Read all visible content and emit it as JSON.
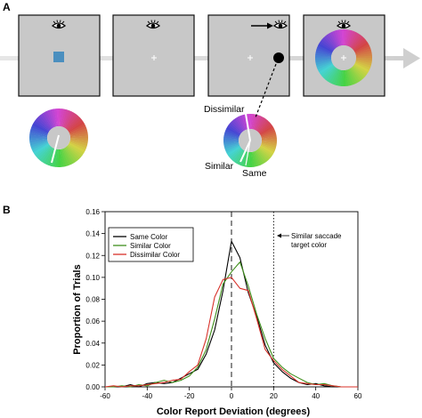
{
  "panel_a": {
    "letter": "A",
    "labels": {
      "dissimilar": "Dissimilar",
      "similar": "Similar",
      "same": "Same"
    }
  },
  "panel_b": {
    "letter": "B",
    "annotation": "Similar saccade\ntarget color"
  },
  "chart_data": {
    "type": "line",
    "title": "",
    "xlabel": "Color Report Deviation (degrees)",
    "ylabel": "Proportion of Trials",
    "xlim": [
      -60,
      60
    ],
    "ylim": [
      0,
      0.16
    ],
    "x_ticks": [
      -60,
      -40,
      -20,
      0,
      20,
      40,
      60
    ],
    "y_ticks": [
      0.0,
      0.02,
      0.04,
      0.06,
      0.08,
      0.1,
      0.12,
      0.14,
      0.16
    ],
    "y_tick_labels": [
      "0.00",
      "0.02",
      "0.04",
      "0.06",
      "0.08",
      "0.10",
      "0.12",
      "0.14",
      "0.16"
    ],
    "legend": "top-left",
    "grid": false,
    "reference_lines": [
      {
        "x": 0,
        "style": "dashed"
      },
      {
        "x": 20,
        "style": "dotted"
      }
    ],
    "series": [
      {
        "name": "Same Color",
        "color": "#000000",
        "x": [
          -60,
          -56,
          -52,
          -48,
          -44,
          -40,
          -36,
          -32,
          -28,
          -24,
          -20,
          -16,
          -12,
          -8,
          -4,
          0,
          4,
          8,
          12,
          16,
          20,
          24,
          28,
          32,
          36,
          40,
          44,
          48,
          52,
          56,
          60
        ],
        "y": [
          0.0,
          0.0,
          0.0,
          0.002,
          0.0,
          0.003,
          0.004,
          0.003,
          0.004,
          0.008,
          0.012,
          0.016,
          0.03,
          0.052,
          0.088,
          0.133,
          0.118,
          0.086,
          0.064,
          0.038,
          0.022,
          0.014,
          0.008,
          0.004,
          0.002,
          0.003,
          0.001,
          0.0,
          0.0,
          0.0,
          0.0
        ]
      },
      {
        "name": "Similar Color",
        "color": "#3f8f1c",
        "x": [
          -60,
          -56,
          -52,
          -48,
          -44,
          -40,
          -36,
          -32,
          -28,
          -24,
          -20,
          -16,
          -12,
          -8,
          -4,
          0,
          4,
          8,
          12,
          16,
          20,
          24,
          28,
          32,
          36,
          40,
          44,
          48,
          52,
          56,
          60
        ],
        "y": [
          0.0,
          0.0,
          0.001,
          0.0,
          0.002,
          0.001,
          0.004,
          0.006,
          0.004,
          0.006,
          0.01,
          0.018,
          0.034,
          0.062,
          0.094,
          0.105,
          0.114,
          0.092,
          0.066,
          0.044,
          0.026,
          0.018,
          0.012,
          0.008,
          0.004,
          0.002,
          0.003,
          0.001,
          0.0,
          0.0,
          0.0
        ]
      },
      {
        "name": "Dissimilar Color",
        "color": "#d8312a",
        "x": [
          -60,
          -56,
          -52,
          -48,
          -44,
          -40,
          -36,
          -32,
          -28,
          -24,
          -20,
          -16,
          -12,
          -8,
          -4,
          0,
          4,
          8,
          12,
          16,
          20,
          24,
          28,
          32,
          36,
          40,
          44,
          48,
          52,
          56,
          60
        ],
        "y": [
          0.0,
          0.001,
          0.0,
          0.001,
          0.001,
          0.002,
          0.003,
          0.004,
          0.006,
          0.007,
          0.014,
          0.02,
          0.044,
          0.082,
          0.098,
          0.1,
          0.09,
          0.088,
          0.062,
          0.034,
          0.024,
          0.016,
          0.01,
          0.004,
          0.003,
          0.002,
          0.002,
          0.001,
          0.0,
          0.0,
          0.0
        ]
      }
    ]
  }
}
